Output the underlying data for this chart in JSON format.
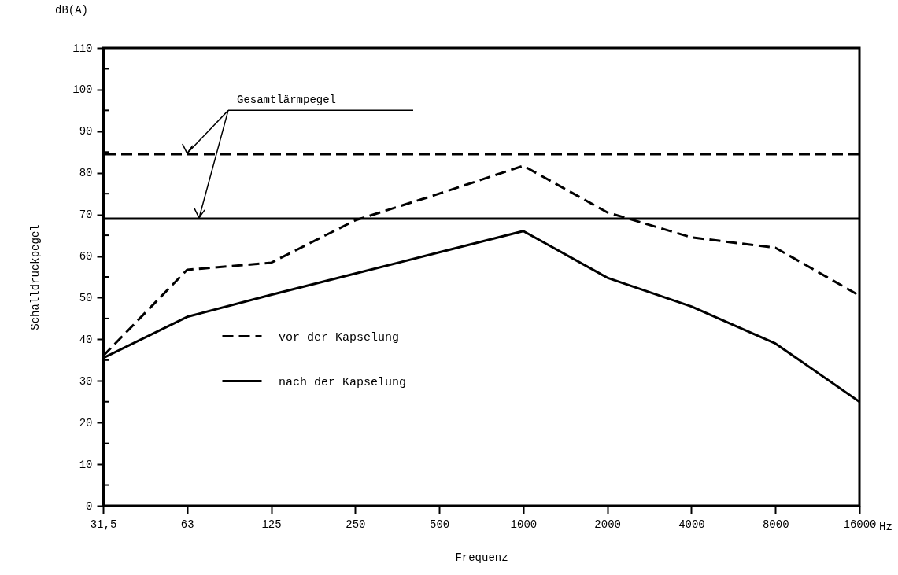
{
  "chart_data": {
    "type": "line",
    "xlabel": "Frequenz",
    "ylabel": "Schalldruckpegel",
    "categories": [
      "31,5",
      "63",
      "125",
      "250",
      "500",
      "1000",
      "2000",
      "4000",
      "8000",
      "16000"
    ],
    "series": [
      {
        "name": "vor der Kapselung",
        "color": "#000000",
        "line_style": "dashed",
        "values": [
          36,
          56.7,
          58.4,
          68.6,
          75,
          81.7,
          70.5,
          64.5,
          62,
          50.5
        ]
      },
      {
        "name": "nach der Kapselung",
        "color": "#000000",
        "line_style": "solid",
        "values": [
          35.5,
          45.4,
          50.7,
          55.8,
          60.9,
          66,
          54.8,
          47.9,
          39,
          25
        ]
      }
    ],
    "ylim": [
      0,
      110
    ],
    "yticks": [
      0,
      {
        "value": 5,
        "label": null
      },
      10,
      {
        "value": 15,
        "label": null
      },
      20,
      {
        "value": 25,
        "label": null
      },
      30,
      {
        "value": 35,
        "label": null
      },
      40,
      {
        "value": 45,
        "label": null
      },
      50,
      {
        "value": 55,
        "label": null
      },
      60,
      {
        "value": 65,
        "label": null
      },
      70,
      {
        "value": 75,
        "label": null
      },
      80,
      {
        "value": 85,
        "label": null
      },
      90,
      {
        "value": 95,
        "label": null
      },
      100,
      {
        "value": 105,
        "label": null
      },
      110
    ],
    "ref_lines": [
      {
        "axis": "y",
        "value": 84.5,
        "color": "#000000",
        "line_style": "dashed"
      },
      {
        "axis": "y",
        "value": 69,
        "color": "#000000",
        "line_style": "solid"
      }
    ],
    "annotations": [
      "dB(A)",
      {
        "text": "Gesamtlärmpegel",
        "x": "63",
        "y": 84.5
      },
      "Hz"
    ],
    "legend": "bottom left",
    "grid": false,
    "marker": "none"
  }
}
